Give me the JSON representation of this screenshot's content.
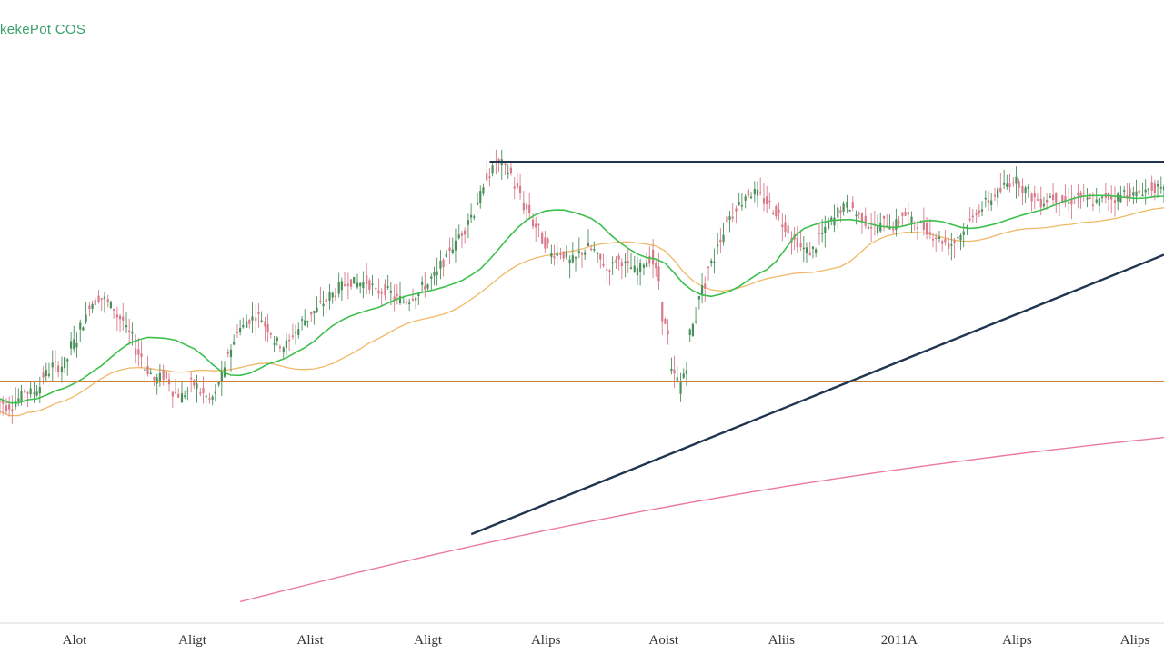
{
  "chart_data": {
    "type": "line",
    "title": "kekePot COS",
    "xlabel": "",
    "ylabel": "",
    "x_tick_labels": [
      "Alot",
      "Aligt",
      "Alist",
      "Aligt",
      "Alips",
      "Aoist",
      "Aliis",
      "2011A",
      "Alips",
      "Alips"
    ],
    "grid": false,
    "legend": "none",
    "colors": {
      "up_candle": "#4a8f5a",
      "down_candle": "#d87a8a",
      "ma_fast": "#3cbf4c",
      "ma_slow": "#f0b866",
      "resistance": "#1f3550",
      "trendline": "#1f3550",
      "horizontal_support": "#c8853a",
      "long_trend": "#ec7a9a",
      "axis": "#cccccc"
    },
    "price_series": [
      48,
      46,
      47,
      50,
      49,
      53,
      56,
      55,
      60,
      64,
      70,
      72,
      71,
      68,
      65,
      60,
      56,
      52,
      54,
      50,
      48,
      52,
      50,
      47,
      51,
      58,
      64,
      66,
      68,
      66,
      62,
      60,
      63,
      66,
      68,
      70,
      72,
      74,
      76,
      75,
      76,
      73,
      74,
      72,
      71,
      72,
      74,
      76,
      79,
      83,
      86,
      90,
      94,
      100,
      104,
      103,
      99,
      94,
      90,
      86,
      82,
      83,
      80,
      82,
      84,
      82,
      78,
      81,
      80,
      78,
      80,
      82,
      70,
      55,
      50,
      62,
      72,
      78,
      84,
      90,
      93,
      96,
      97,
      95,
      93,
      90,
      86,
      84,
      82,
      86,
      89,
      92,
      94,
      92,
      90,
      88,
      90,
      88,
      92,
      90,
      89,
      87,
      86,
      84,
      86,
      89,
      92,
      94,
      96,
      98,
      100,
      98,
      96,
      94,
      96,
      95,
      94,
      96,
      95,
      94,
      96,
      95,
      97,
      96,
      97,
      98,
      97
    ],
    "overlays": {
      "resistance_level": 104,
      "support_level": 52,
      "trendline_start": {
        "index": 52,
        "value": 16
      },
      "trendline_end": {
        "index": 126,
        "value": 82
      }
    },
    "ylim": [
      -5,
      110
    ]
  }
}
